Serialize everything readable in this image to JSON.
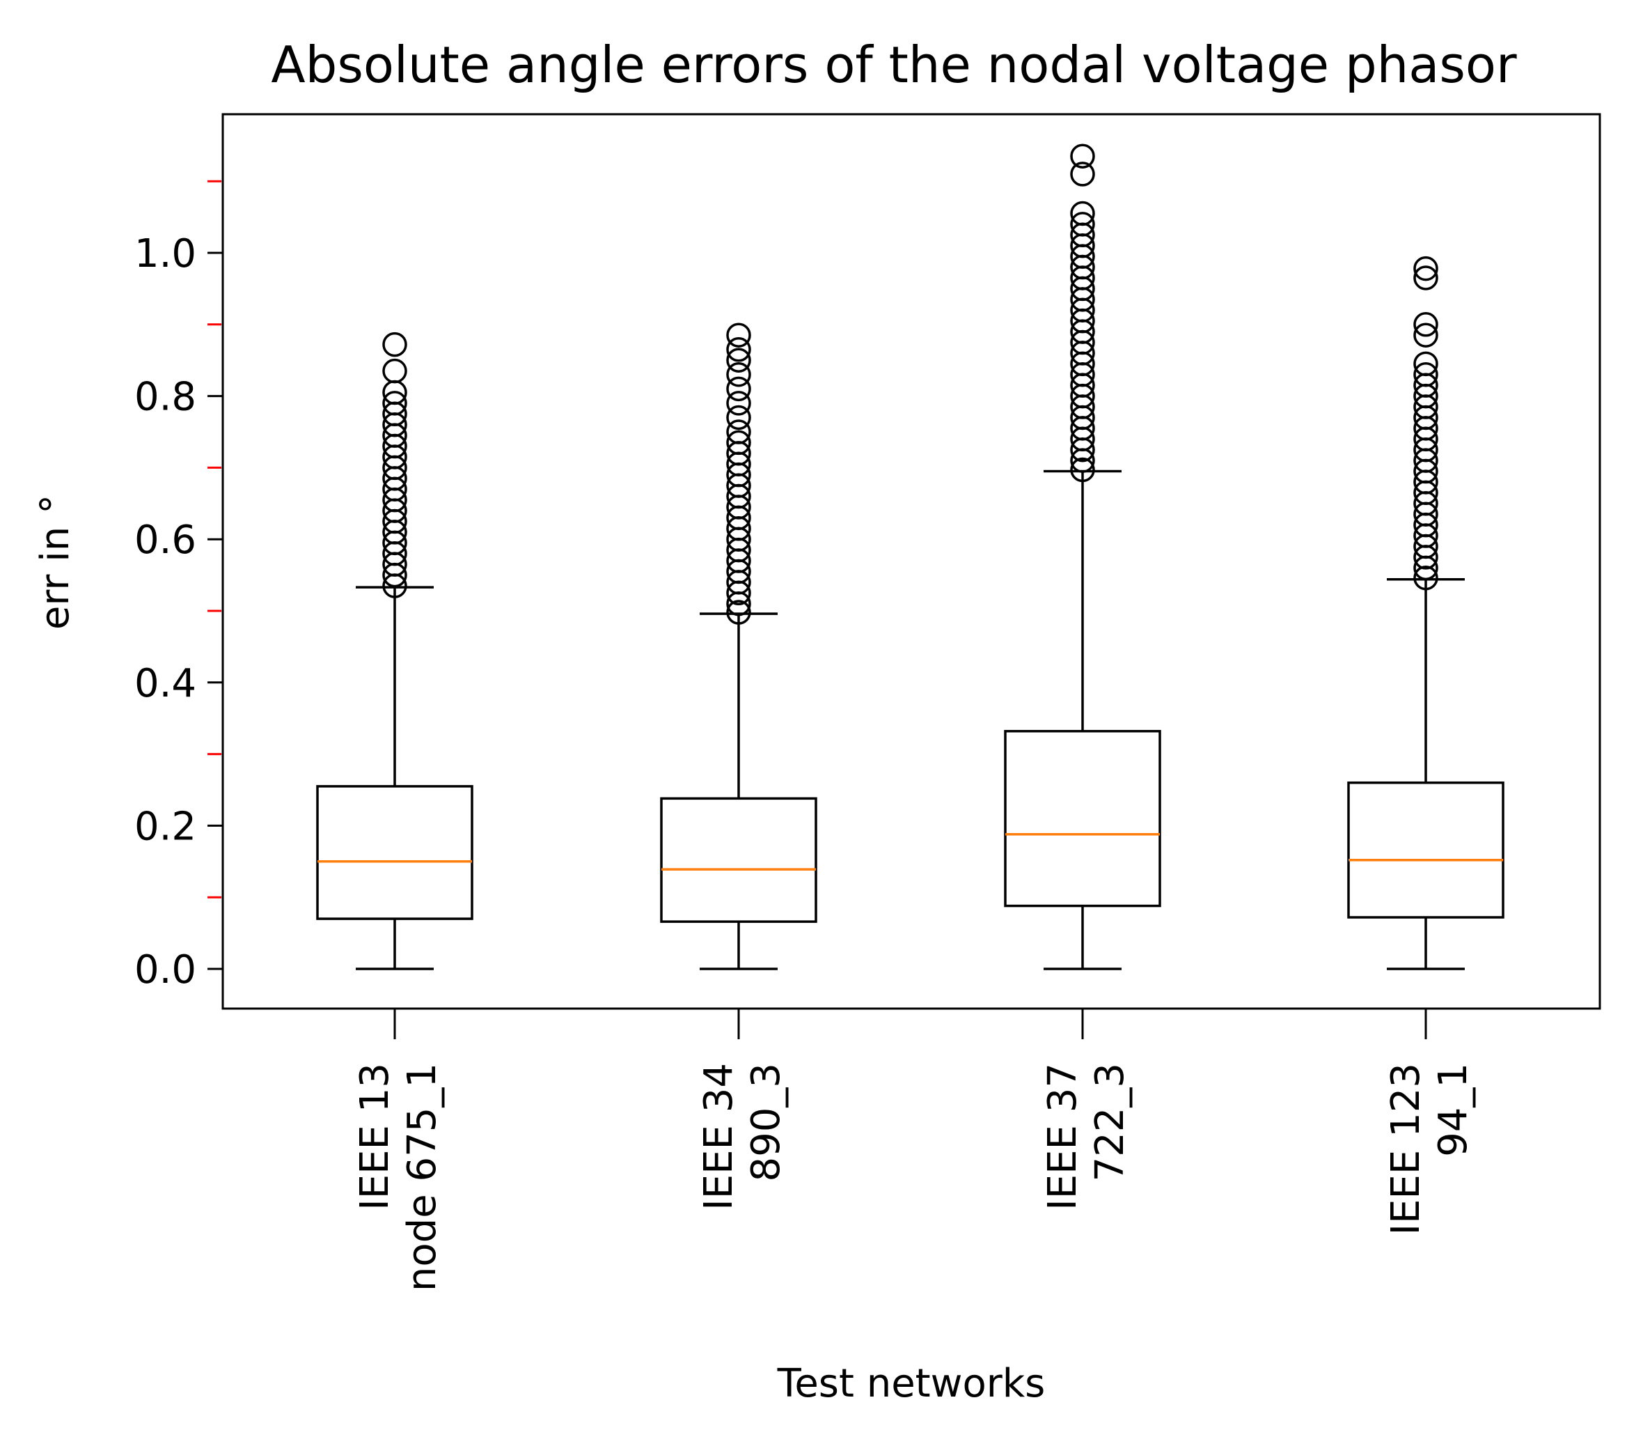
{
  "chart_data": {
    "type": "boxplot",
    "title": "Absolute angle errors of the nodal voltage phasor",
    "xlabel": "Test networks",
    "ylabel": "err in °",
    "ylim": [
      -0.057,
      1.193
    ],
    "yticks": [
      {
        "value": 0.0,
        "label": "0.0"
      },
      {
        "value": 0.2,
        "label": "0.2"
      },
      {
        "value": 0.4,
        "label": "0.4"
      },
      {
        "value": 0.6,
        "label": "0.6"
      },
      {
        "value": 0.8,
        "label": "0.8"
      },
      {
        "value": 1.0,
        "label": "1.0"
      }
    ],
    "minor_yticks": [
      0.1,
      0.3,
      0.5,
      0.7,
      0.9,
      1.1
    ],
    "categories": [
      {
        "line1": "IEEE 13",
        "line2": "node 675_1"
      },
      {
        "line1": "IEEE 34",
        "line2": "890_3"
      },
      {
        "line1": "IEEE 37",
        "line2": "722_3"
      },
      {
        "line1": "IEEE 123",
        "line2": "94_1"
      }
    ],
    "boxes": [
      {
        "whislo": 0.0,
        "q1": 0.07,
        "med": 0.15,
        "q3": 0.255,
        "whishi": 0.533,
        "fliers": [
          0.535,
          0.55,
          0.565,
          0.58,
          0.595,
          0.61,
          0.625,
          0.64,
          0.655,
          0.67,
          0.685,
          0.7,
          0.715,
          0.73,
          0.745,
          0.76,
          0.775,
          0.79,
          0.805,
          0.835,
          0.872
        ]
      },
      {
        "whislo": 0.0,
        "q1": 0.066,
        "med": 0.139,
        "q3": 0.238,
        "whishi": 0.496,
        "fliers": [
          0.498,
          0.51,
          0.525,
          0.54,
          0.555,
          0.57,
          0.585,
          0.6,
          0.615,
          0.63,
          0.645,
          0.66,
          0.675,
          0.69,
          0.705,
          0.72,
          0.735,
          0.75,
          0.77,
          0.79,
          0.81,
          0.83,
          0.85,
          0.865,
          0.885
        ]
      },
      {
        "whislo": 0.0,
        "q1": 0.088,
        "med": 0.188,
        "q3": 0.332,
        "whishi": 0.695,
        "fliers": [
          0.697,
          0.71,
          0.725,
          0.74,
          0.755,
          0.77,
          0.785,
          0.8,
          0.815,
          0.83,
          0.845,
          0.86,
          0.875,
          0.89,
          0.905,
          0.92,
          0.935,
          0.95,
          0.965,
          0.98,
          0.995,
          1.01,
          1.025,
          1.04,
          1.055,
          1.11,
          1.135
        ]
      },
      {
        "whislo": 0.0,
        "q1": 0.072,
        "med": 0.152,
        "q3": 0.26,
        "whishi": 0.544,
        "fliers": [
          0.546,
          0.56,
          0.575,
          0.59,
          0.605,
          0.62,
          0.635,
          0.65,
          0.665,
          0.68,
          0.695,
          0.71,
          0.725,
          0.74,
          0.755,
          0.77,
          0.785,
          0.8,
          0.815,
          0.83,
          0.845,
          0.885,
          0.9,
          0.965,
          0.978
        ]
      }
    ],
    "colors": {
      "box": "#000000",
      "median": "#ff7f0e",
      "minor_tick": "#ff0000",
      "background": "#ffffff"
    }
  }
}
